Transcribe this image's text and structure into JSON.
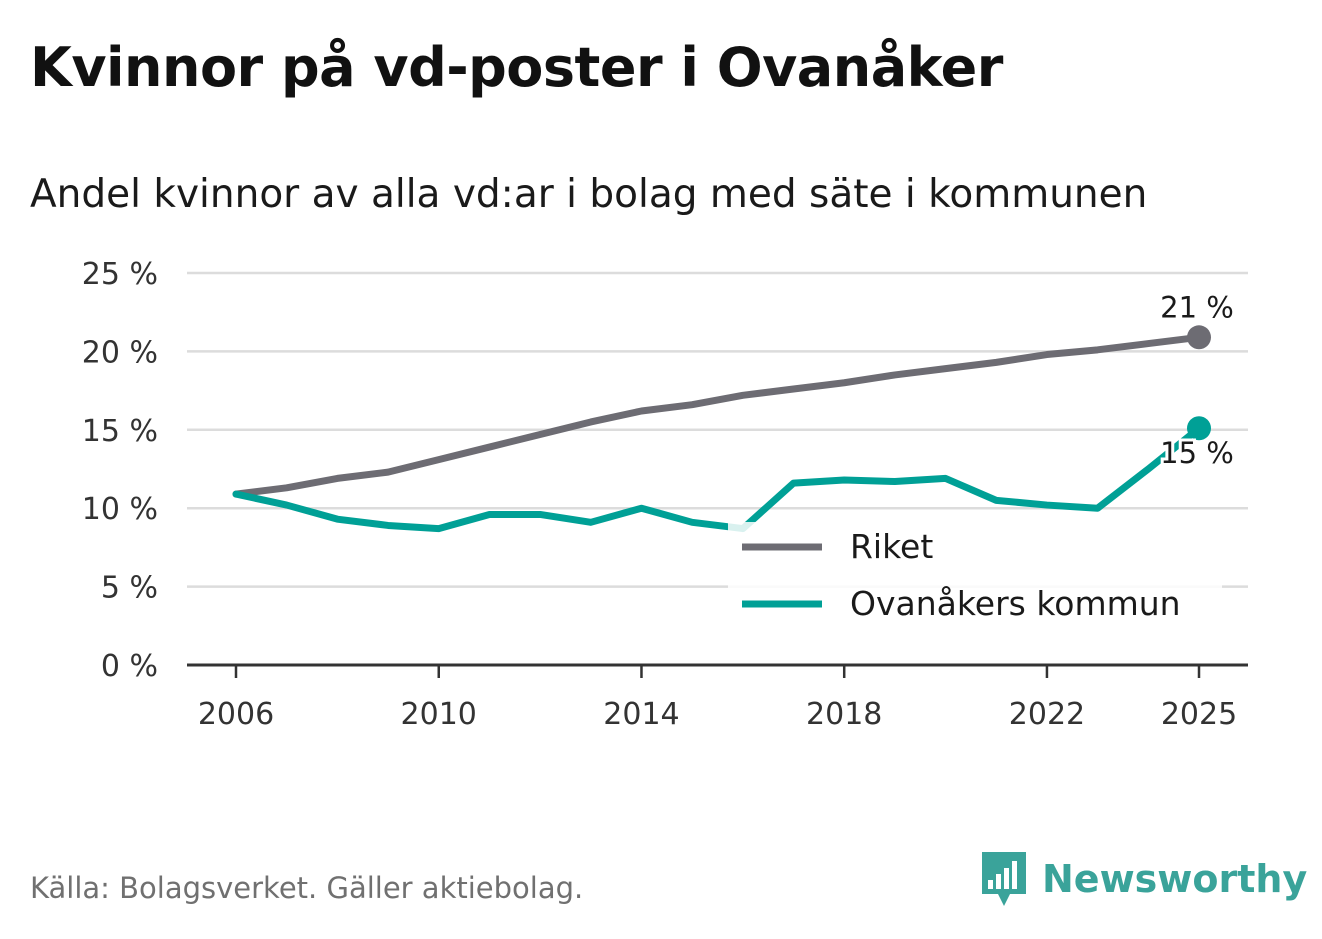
{
  "chart_data": {
    "type": "line",
    "title": "Kvinnor på vd-poster i Ovanåker",
    "subtitle": "Andel kvinnor av alla vd:ar i bolag med säte i kommunen",
    "x": [
      2006,
      2007,
      2008,
      2009,
      2010,
      2011,
      2012,
      2013,
      2014,
      2015,
      2016,
      2017,
      2018,
      2019,
      2020,
      2021,
      2022,
      2023,
      2024,
      2025
    ],
    "series": [
      {
        "name": "Riket",
        "color": "#6d6c73",
        "values": [
          10.9,
          11.3,
          11.9,
          12.3,
          13.1,
          13.9,
          14.7,
          15.5,
          16.2,
          16.6,
          17.2,
          17.6,
          18.0,
          18.5,
          18.9,
          19.3,
          19.8,
          20.1,
          20.5,
          20.9
        ],
        "end_label": "21 %"
      },
      {
        "name": "Ovanåkers kommun",
        "color": "#00a096",
        "values": [
          10.9,
          10.2,
          9.3,
          8.9,
          8.7,
          9.6,
          9.6,
          9.1,
          10.0,
          9.1,
          8.7,
          11.6,
          11.8,
          11.7,
          11.9,
          10.5,
          10.2,
          10.0,
          12.5,
          15.1
        ],
        "end_label": "15 %"
      }
    ],
    "xlabel": "",
    "ylabel": "",
    "ylim": [
      0,
      25
    ],
    "y_ticks": [
      0,
      5,
      10,
      15,
      20,
      25
    ],
    "y_tick_labels": [
      "0 %",
      "5 %",
      "10 %",
      "15 %",
      "20 %",
      "25 %"
    ],
    "x_ticks": [
      2006,
      2010,
      2014,
      2018,
      2022,
      2025
    ],
    "x_tick_labels": [
      "2006",
      "2010",
      "2014",
      "2018",
      "2022",
      "2025"
    ],
    "grid": true,
    "legend_position": "bottom-right"
  },
  "source": "Källa: Bolagsverket. Gäller aktiebolag.",
  "brand": {
    "name": "Newsworthy",
    "logo_icon": "bar-chart-speech-bubble-icon",
    "color": "#3aa39a"
  }
}
